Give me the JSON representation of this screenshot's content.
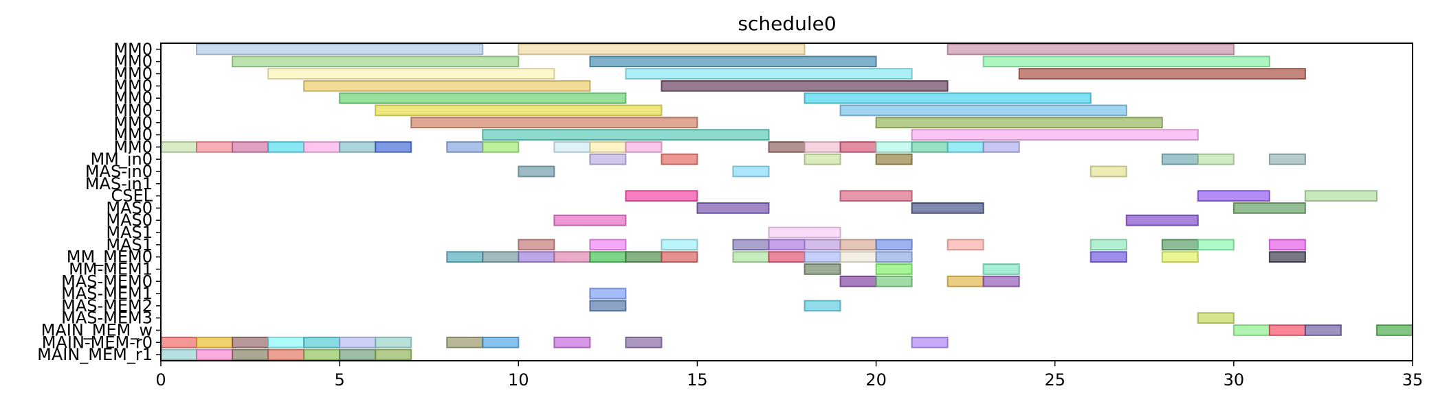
{
  "chart_data": {
    "type": "gantt",
    "title": "schedule0",
    "xlabel": "",
    "ylabel": "",
    "xlim": [
      0,
      35
    ],
    "xticks": [
      0,
      5,
      10,
      15,
      20,
      25,
      30,
      35
    ],
    "grid": false,
    "rows": [
      "MM0",
      "MM0",
      "MM0",
      "MM0",
      "MM0",
      "MM0",
      "MM0",
      "MM0",
      "MM0",
      "MM_in0",
      "MAS-in0",
      "MAS-in1",
      "CSEL",
      "MAS0",
      "MAS0",
      "MAS1",
      "MAS1",
      "MM_MEM0",
      "MM-MEM1",
      "MAS-MEM0",
      "MAS-MEM1",
      "MAS-MEM2",
      "MAS-MEM3",
      "MAIN_MEM_w",
      "MAIN-MEM-r0",
      "MAIN_MEM_r1"
    ],
    "tasks": [
      {
        "row": 0,
        "start": 1,
        "end": 9,
        "color": "#aec7e8"
      },
      {
        "row": 0,
        "start": 10,
        "end": 18,
        "color": "#f0dca0"
      },
      {
        "row": 0,
        "start": 22,
        "end": 30,
        "color": "#c98ea8"
      },
      {
        "row": 1,
        "start": 2,
        "end": 10,
        "color": "#98d283"
      },
      {
        "row": 1,
        "start": 12,
        "end": 20,
        "color": "#3b87ad"
      },
      {
        "row": 1,
        "start": 23,
        "end": 31,
        "color": "#7ff0a0"
      },
      {
        "row": 2,
        "start": 3,
        "end": 11,
        "color": "#fff5b0"
      },
      {
        "row": 2,
        "start": 13,
        "end": 21,
        "color": "#7fe7f2"
      },
      {
        "row": 2,
        "start": 24,
        "end": 32,
        "color": "#a5473b"
      },
      {
        "row": 3,
        "start": 4,
        "end": 12,
        "color": "#e8c860"
      },
      {
        "row": 3,
        "start": 14,
        "end": 22,
        "color": "#5d3456"
      },
      {
        "row": 4,
        "start": 5,
        "end": 13,
        "color": "#62d06a"
      },
      {
        "row": 4,
        "start": 18,
        "end": 26,
        "color": "#3dd1ec"
      },
      {
        "row": 5,
        "start": 6,
        "end": 14,
        "color": "#e6dc3c"
      },
      {
        "row": 5,
        "start": 19,
        "end": 27,
        "color": "#6fbde8"
      },
      {
        "row": 6,
        "start": 7,
        "end": 15,
        "color": "#cc7a5c"
      },
      {
        "row": 6,
        "start": 20,
        "end": 28,
        "color": "#8fb050"
      },
      {
        "row": 7,
        "start": 9,
        "end": 17,
        "color": "#4fc7b3"
      },
      {
        "row": 7,
        "start": 21,
        "end": 29,
        "color": "#f7a6ef"
      },
      {
        "row": 8,
        "start": 0,
        "end": 1,
        "color": "#c2e0a6"
      },
      {
        "row": 8,
        "start": 1,
        "end": 2,
        "color": "#f5848e"
      },
      {
        "row": 8,
        "start": 2,
        "end": 3,
        "color": "#cf6ea2"
      },
      {
        "row": 8,
        "start": 3,
        "end": 4,
        "color": "#49d8f0"
      },
      {
        "row": 8,
        "start": 4,
        "end": 5,
        "color": "#fba8e8"
      },
      {
        "row": 8,
        "start": 5,
        "end": 6,
        "color": "#7fbfca"
      },
      {
        "row": 8,
        "start": 6,
        "end": 7,
        "color": "#3b64d6"
      },
      {
        "row": 8,
        "start": 8,
        "end": 9,
        "color": "#7fa0de"
      },
      {
        "row": 8,
        "start": 9,
        "end": 10,
        "color": "#9be86a"
      },
      {
        "row": 8,
        "start": 11,
        "end": 12,
        "color": "#cdebf7"
      },
      {
        "row": 8,
        "start": 12,
        "end": 13,
        "color": "#fdeda8"
      },
      {
        "row": 8,
        "start": 13,
        "end": 14,
        "color": "#f7a8e0"
      },
      {
        "row": 8,
        "start": 17,
        "end": 18,
        "color": "#8a5858"
      },
      {
        "row": 8,
        "start": 18,
        "end": 19,
        "color": "#efbdd0"
      },
      {
        "row": 8,
        "start": 19,
        "end": 20,
        "color": "#d3506e"
      },
      {
        "row": 8,
        "start": 20,
        "end": 21,
        "color": "#a8f7e8"
      },
      {
        "row": 8,
        "start": 21,
        "end": 22,
        "color": "#5fd1a4"
      },
      {
        "row": 8,
        "start": 22,
        "end": 23,
        "color": "#5fe0f0"
      },
      {
        "row": 8,
        "start": 23,
        "end": 24,
        "color": "#a6a8ea"
      },
      {
        "row": 9,
        "start": 12,
        "end": 13,
        "color": "#b8a8e0"
      },
      {
        "row": 9,
        "start": 14,
        "end": 15,
        "color": "#e06058"
      },
      {
        "row": 9,
        "start": 18,
        "end": 19,
        "color": "#c6e098"
      },
      {
        "row": 9,
        "start": 20,
        "end": 21,
        "color": "#8e7a38"
      },
      {
        "row": 9,
        "start": 28,
        "end": 29,
        "color": "#6aa8b0"
      },
      {
        "row": 9,
        "start": 29,
        "end": 30,
        "color": "#b8e0a8"
      },
      {
        "row": 9,
        "start": 31,
        "end": 32,
        "color": "#8fb0b0"
      },
      {
        "row": 10,
        "start": 10,
        "end": 11,
        "color": "#6a98a8"
      },
      {
        "row": 10,
        "start": 16,
        "end": 17,
        "color": "#7fd8f7"
      },
      {
        "row": 10,
        "start": 26,
        "end": 27,
        "color": "#e0e08a"
      },
      {
        "row": 12,
        "start": 13,
        "end": 15,
        "color": "#f0389e"
      },
      {
        "row": 12,
        "start": 19,
        "end": 21,
        "color": "#d8607e"
      },
      {
        "row": 12,
        "start": 29,
        "end": 31,
        "color": "#8850ee"
      },
      {
        "row": 12,
        "start": 32,
        "end": 34,
        "color": "#a8dc98"
      },
      {
        "row": 13,
        "start": 15,
        "end": 17,
        "color": "#6e4aa8"
      },
      {
        "row": 13,
        "start": 21,
        "end": 23,
        "color": "#3a4a7e"
      },
      {
        "row": 13,
        "start": 30,
        "end": 32,
        "color": "#5a9a5a"
      },
      {
        "row": 14,
        "start": 11,
        "end": 13,
        "color": "#e060c0"
      },
      {
        "row": 14,
        "start": 27,
        "end": 29,
        "color": "#7a40c8"
      },
      {
        "row": 15,
        "start": 17,
        "end": 19,
        "color": "#f7c8f7"
      },
      {
        "row": 16,
        "start": 10,
        "end": 11,
        "color": "#c07070"
      },
      {
        "row": 16,
        "start": 12,
        "end": 13,
        "color": "#f07af0"
      },
      {
        "row": 16,
        "start": 14,
        "end": 15,
        "color": "#96eef7"
      },
      {
        "row": 16,
        "start": 16,
        "end": 17,
        "color": "#7a70b0"
      },
      {
        "row": 16,
        "start": 17,
        "end": 18,
        "color": "#a870e0"
      },
      {
        "row": 16,
        "start": 18,
        "end": 19,
        "color": "#b898e0"
      },
      {
        "row": 16,
        "start": 19,
        "end": 20,
        "color": "#d4a890"
      },
      {
        "row": 16,
        "start": 20,
        "end": 21,
        "color": "#6a88e8"
      },
      {
        "row": 16,
        "start": 22,
        "end": 23,
        "color": "#fba8a0"
      },
      {
        "row": 16,
        "start": 26,
        "end": 27,
        "color": "#8ae8b8"
      },
      {
        "row": 16,
        "start": 28,
        "end": 29,
        "color": "#4e9a60"
      },
      {
        "row": 16,
        "start": 29,
        "end": 30,
        "color": "#80f8a8"
      },
      {
        "row": 16,
        "start": 31,
        "end": 32,
        "color": "#e850e8"
      },
      {
        "row": 17,
        "start": 8,
        "end": 9,
        "color": "#48a8b8"
      },
      {
        "row": 17,
        "start": 9,
        "end": 10,
        "color": "#7098a0"
      },
      {
        "row": 17,
        "start": 10,
        "end": 11,
        "color": "#9a78d8"
      },
      {
        "row": 17,
        "start": 11,
        "end": 12,
        "color": "#de80aa"
      },
      {
        "row": 17,
        "start": 12,
        "end": 13,
        "color": "#38c048"
      },
      {
        "row": 17,
        "start": 13,
        "end": 14,
        "color": "#488a48"
      },
      {
        "row": 17,
        "start": 14,
        "end": 15,
        "color": "#d85858"
      },
      {
        "row": 17,
        "start": 16,
        "end": 17,
        "color": "#a8e098"
      },
      {
        "row": 17,
        "start": 17,
        "end": 18,
        "color": "#e0486a"
      },
      {
        "row": 17,
        "start": 18,
        "end": 19,
        "color": "#a8b8f7"
      },
      {
        "row": 17,
        "start": 19,
        "end": 20,
        "color": "#f0e8d8"
      },
      {
        "row": 17,
        "start": 20,
        "end": 21,
        "color": "#88a8e0"
      },
      {
        "row": 17,
        "start": 26,
        "end": 27,
        "color": "#6a50e0"
      },
      {
        "row": 17,
        "start": 28,
        "end": 29,
        "color": "#e0f058"
      },
      {
        "row": 17,
        "start": 31,
        "end": 32,
        "color": "#303040"
      },
      {
        "row": 18,
        "start": 18,
        "end": 19,
        "color": "#6a8060"
      },
      {
        "row": 18,
        "start": 20,
        "end": 21,
        "color": "#78f060"
      },
      {
        "row": 18,
        "start": 23,
        "end": 24,
        "color": "#78e8c0"
      },
      {
        "row": 19,
        "start": 19,
        "end": 20,
        "color": "#7a3a98"
      },
      {
        "row": 19,
        "start": 20,
        "end": 21,
        "color": "#70c878"
      },
      {
        "row": 19,
        "start": 22,
        "end": 23,
        "color": "#e0b040"
      },
      {
        "row": 19,
        "start": 23,
        "end": 24,
        "color": "#8a50b0"
      },
      {
        "row": 20,
        "start": 12,
        "end": 13,
        "color": "#7898f8"
      },
      {
        "row": 21,
        "start": 12,
        "end": 13,
        "color": "#4a70a8"
      },
      {
        "row": 21,
        "start": 18,
        "end": 19,
        "color": "#58c8e0"
      },
      {
        "row": 22,
        "start": 29,
        "end": 30,
        "color": "#c0d850"
      },
      {
        "row": 23,
        "start": 30,
        "end": 31,
        "color": "#88f088"
      },
      {
        "row": 23,
        "start": 31,
        "end": 32,
        "color": "#f84860"
      },
      {
        "row": 23,
        "start": 32,
        "end": 33,
        "color": "#6a58a0"
      },
      {
        "row": 23,
        "start": 34,
        "end": 35,
        "color": "#40a840"
      },
      {
        "row": 24,
        "start": 0,
        "end": 1,
        "color": "#f06060"
      },
      {
        "row": 24,
        "start": 1,
        "end": 2,
        "color": "#e8b820"
      },
      {
        "row": 24,
        "start": 2,
        "end": 3,
        "color": "#906060"
      },
      {
        "row": 24,
        "start": 3,
        "end": 4,
        "color": "#80f8f8"
      },
      {
        "row": 24,
        "start": 4,
        "end": 5,
        "color": "#48c8d0"
      },
      {
        "row": 24,
        "start": 5,
        "end": 6,
        "color": "#b0b8f0"
      },
      {
        "row": 24,
        "start": 6,
        "end": 7,
        "color": "#90d0c8"
      },
      {
        "row": 24,
        "start": 8,
        "end": 9,
        "color": "#909060"
      },
      {
        "row": 24,
        "start": 9,
        "end": 10,
        "color": "#48a0e0"
      },
      {
        "row": 24,
        "start": 11,
        "end": 12,
        "color": "#c060d8"
      },
      {
        "row": 24,
        "start": 13,
        "end": 14,
        "color": "#8060a0"
      },
      {
        "row": 24,
        "start": 21,
        "end": 22,
        "color": "#a880f8"
      },
      {
        "row": 25,
        "start": 0,
        "end": 1,
        "color": "#90d0d0"
      },
      {
        "row": 25,
        "start": 1,
        "end": 2,
        "color": "#f880d0"
      },
      {
        "row": 25,
        "start": 2,
        "end": 3,
        "color": "#807858"
      },
      {
        "row": 25,
        "start": 3,
        "end": 4,
        "color": "#e07058"
      },
      {
        "row": 25,
        "start": 4,
        "end": 5,
        "color": "#88c050"
      },
      {
        "row": 25,
        "start": 5,
        "end": 6,
        "color": "#6a9a78"
      },
      {
        "row": 25,
        "start": 6,
        "end": 7,
        "color": "#88b050"
      }
    ]
  }
}
